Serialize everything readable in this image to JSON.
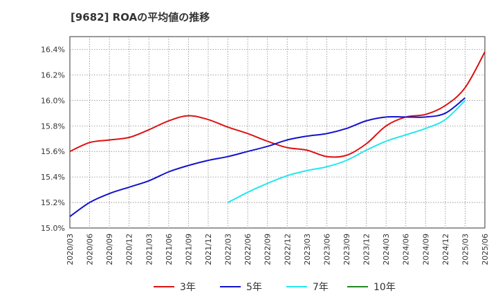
{
  "chart_data": {
    "type": "line",
    "title": "[9682]  ROAの平均値の推移",
    "xlabel": "",
    "ylabel": "",
    "ylim": [
      15.0,
      16.5
    ],
    "yticks": [
      "15.0%",
      "15.2%",
      "15.4%",
      "15.6%",
      "15.8%",
      "16.0%",
      "16.2%",
      "16.4%"
    ],
    "yticks_values": [
      15.0,
      15.2,
      15.4,
      15.6,
      15.8,
      16.0,
      16.2,
      16.4
    ],
    "xticks": [
      "2020/03",
      "2020/06",
      "2020/09",
      "2020/12",
      "2021/03",
      "2021/06",
      "2021/09",
      "2021/12",
      "2022/03",
      "2022/06",
      "2022/09",
      "2022/12",
      "2023/03",
      "2023/06",
      "2023/09",
      "2023/12",
      "2024/03",
      "2024/06",
      "2024/09",
      "2024/12",
      "2025/03",
      "2025/06"
    ],
    "grid": true,
    "legend_position": "bottom",
    "series": [
      {
        "name": "3年",
        "color": "#dd1111",
        "values": [
          15.6,
          15.67,
          15.69,
          15.71,
          15.77,
          15.84,
          15.88,
          15.85,
          15.79,
          15.74,
          15.68,
          15.63,
          15.61,
          15.56,
          15.57,
          15.66,
          15.8,
          15.87,
          15.89,
          15.96,
          16.1,
          16.38
        ]
      },
      {
        "name": "5年",
        "color": "#1111cc",
        "values": [
          15.09,
          15.2,
          15.27,
          15.32,
          15.37,
          15.44,
          15.49,
          15.53,
          15.56,
          15.6,
          15.64,
          15.69,
          15.72,
          15.74,
          15.78,
          15.84,
          15.87,
          15.87,
          15.87,
          15.9,
          16.02,
          null
        ]
      },
      {
        "name": "7年",
        "color": "#22e8ee",
        "values": [
          null,
          null,
          null,
          null,
          null,
          null,
          null,
          null,
          15.2,
          15.28,
          15.35,
          15.41,
          15.45,
          15.48,
          15.53,
          15.61,
          15.68,
          15.73,
          15.78,
          15.85,
          16.0,
          null
        ]
      },
      {
        "name": "10年",
        "color": "#228822",
        "values": [
          null,
          null,
          null,
          null,
          null,
          null,
          null,
          null,
          null,
          null,
          null,
          null,
          null,
          null,
          null,
          null,
          null,
          null,
          null,
          null,
          null,
          null
        ]
      }
    ]
  }
}
